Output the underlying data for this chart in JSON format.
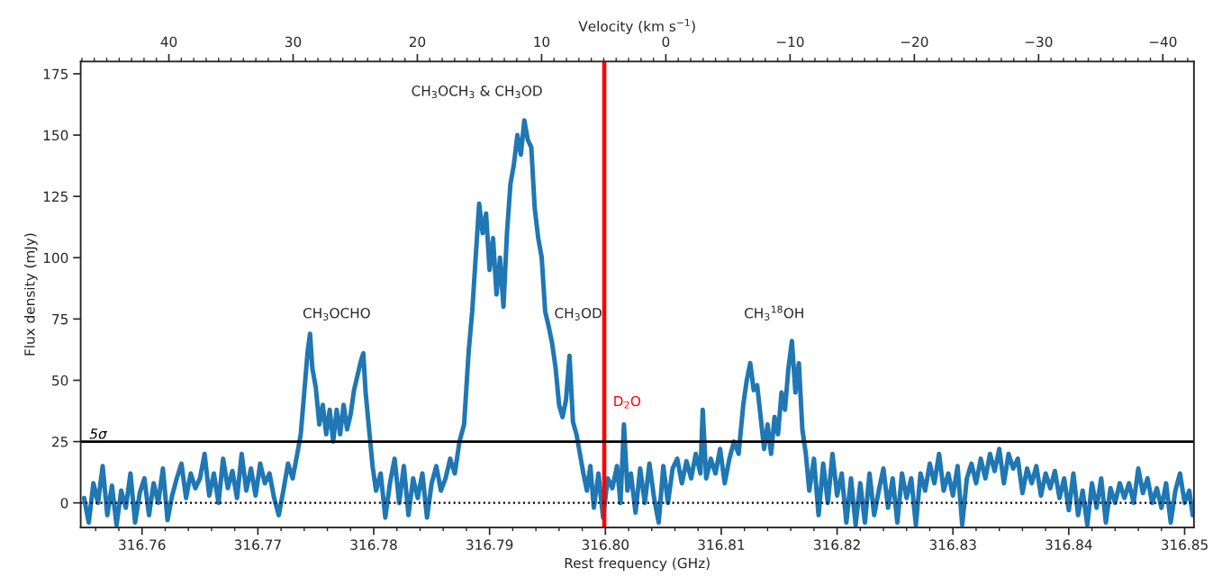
{
  "chart_data": {
    "type": "line",
    "xlabel": "Rest frequency (GHz)",
    "ylabel": "Flux density (mJy)",
    "x2label": "Velocity (km s$^{−1}$)",
    "xlim": [
      316.7547,
      316.8508
    ],
    "ylim": [
      -10,
      180
    ],
    "x2lim": [
      47.1,
      -42.5
    ],
    "xticks": [
      316.76,
      316.77,
      316.78,
      316.79,
      {
        "value": 316.8,
        "label": "316.80"
      },
      316.81,
      316.82,
      316.83,
      316.84,
      316.85,
      {
        "value": 316.756,
        "label": null
      },
      {
        "value": 316.758,
        "label": null
      },
      {
        "value": 316.762,
        "label": null
      },
      {
        "value": 316.764,
        "label": null
      },
      {
        "value": 316.766,
        "label": null
      },
      {
        "value": 316.768,
        "label": null
      },
      {
        "value": 316.772,
        "label": null
      },
      {
        "value": 316.774,
        "label": null
      },
      {
        "value": 316.776,
        "label": null
      },
      {
        "value": 316.778,
        "label": null
      },
      {
        "value": 316.782,
        "label": null
      },
      {
        "value": 316.784,
        "label": null
      },
      {
        "value": 316.786,
        "label": null
      },
      {
        "value": 316.788,
        "label": null
      },
      {
        "value": 316.792,
        "label": null
      },
      {
        "value": 316.794,
        "label": null
      },
      {
        "value": 316.796,
        "label": null
      },
      {
        "value": 316.798,
        "label": null
      },
      {
        "value": 316.802,
        "label": null
      },
      {
        "value": 316.804,
        "label": null
      },
      {
        "value": 316.806,
        "label": null
      },
      {
        "value": 316.808,
        "label": null
      },
      {
        "value": 316.812,
        "label": null
      },
      {
        "value": 316.814,
        "label": null
      },
      {
        "value": 316.816,
        "label": null
      },
      {
        "value": 316.818,
        "label": null
      },
      {
        "value": 316.822,
        "label": null
      },
      {
        "value": 316.824,
        "label": null
      },
      {
        "value": 316.826,
        "label": null
      },
      {
        "value": 316.828,
        "label": null
      },
      {
        "value": 316.832,
        "label": null
      },
      {
        "value": 316.834,
        "label": null
      },
      {
        "value": 316.836,
        "label": null
      },
      {
        "value": 316.838,
        "label": null
      },
      {
        "value": 316.842,
        "label": null
      },
      {
        "value": 316.844,
        "label": null
      },
      {
        "value": 316.846,
        "label": null
      },
      {
        "value": 316.848,
        "label": null
      }
    ],
    "x2ticks": [
      40,
      30,
      20,
      10,
      0,
      {
        "value": -10,
        "label": "−10"
      },
      {
        "value": -20,
        "label": "−20"
      },
      {
        "value": -30,
        "label": "−30"
      },
      {
        "value": -40,
        "label": "−40"
      },
      {
        "value": 47,
        "label": null
      },
      {
        "value": 46,
        "label": null
      },
      {
        "value": 45,
        "label": null
      },
      {
        "value": 44,
        "label": null
      },
      {
        "value": 43,
        "label": null
      },
      {
        "value": 42,
        "label": null
      },
      {
        "value": 41,
        "label": null
      },
      {
        "value": 39,
        "label": null
      },
      {
        "value": 38,
        "label": null
      },
      {
        "value": 37,
        "label": null
      },
      {
        "value": 36,
        "label": null
      },
      {
        "value": 35,
        "label": null
      },
      {
        "value": 34,
        "label": null
      },
      {
        "value": 33,
        "label": null
      },
      {
        "value": 32,
        "label": null
      },
      {
        "value": 31,
        "label": null
      },
      {
        "value": 29,
        "label": null
      },
      {
        "value": 28,
        "label": null
      },
      {
        "value": 27,
        "label": null
      },
      {
        "value": 26,
        "label": null
      },
      {
        "value": 25,
        "label": null
      },
      {
        "value": 24,
        "label": null
      },
      {
        "value": 23,
        "label": null
      },
      {
        "value": 22,
        "label": null
      },
      {
        "value": 21,
        "label": null
      },
      {
        "value": 19,
        "label": null
      },
      {
        "value": 18,
        "label": null
      },
      {
        "value": 17,
        "label": null
      },
      {
        "value": 16,
        "label": null
      },
      {
        "value": 15,
        "label": null
      },
      {
        "value": 14,
        "label": null
      },
      {
        "value": 13,
        "label": null
      },
      {
        "value": 12,
        "label": null
      },
      {
        "value": 11,
        "label": null
      },
      {
        "value": 9,
        "label": null
      },
      {
        "value": 8,
        "label": null
      },
      {
        "value": 7,
        "label": null
      },
      {
        "value": 6,
        "label": null
      },
      {
        "value": 5,
        "label": null
      },
      {
        "value": 4,
        "label": null
      },
      {
        "value": 3,
        "label": null
      },
      {
        "value": 2,
        "label": null
      },
      {
        "value": 1,
        "label": null
      },
      {
        "value": -1,
        "label": null
      },
      {
        "value": -2,
        "label": null
      },
      {
        "value": -3,
        "label": null
      },
      {
        "value": -4,
        "label": null
      },
      {
        "value": -5,
        "label": null
      },
      {
        "value": -6,
        "label": null
      },
      {
        "value": -7,
        "label": null
      },
      {
        "value": -8,
        "label": null
      },
      {
        "value": -9,
        "label": null
      },
      {
        "value": -11,
        "label": null
      },
      {
        "value": -12,
        "label": null
      },
      {
        "value": -13,
        "label": null
      },
      {
        "value": -14,
        "label": null
      },
      {
        "value": -15,
        "label": null
      },
      {
        "value": -16,
        "label": null
      },
      {
        "value": -17,
        "label": null
      },
      {
        "value": -18,
        "label": null
      },
      {
        "value": -19,
        "label": null
      },
      {
        "value": -21,
        "label": null
      },
      {
        "value": -22,
        "label": null
      },
      {
        "value": -23,
        "label": null
      },
      {
        "value": -24,
        "label": null
      },
      {
        "value": -25,
        "label": null
      },
      {
        "value": -26,
        "label": null
      },
      {
        "value": -27,
        "label": null
      },
      {
        "value": -28,
        "label": null
      },
      {
        "value": -29,
        "label": null
      },
      {
        "value": -31,
        "label": null
      },
      {
        "value": -32,
        "label": null
      },
      {
        "value": -33,
        "label": null
      },
      {
        "value": -34,
        "label": null
      },
      {
        "value": -35,
        "label": null
      },
      {
        "value": -36,
        "label": null
      },
      {
        "value": -37,
        "label": null
      },
      {
        "value": -38,
        "label": null
      },
      {
        "value": -39,
        "label": null
      },
      {
        "value": -41,
        "label": null
      },
      {
        "value": -42,
        "label": null
      }
    ],
    "yticks": [
      0,
      25,
      50,
      75,
      100,
      125,
      150,
      175
    ],
    "grid": false,
    "marker": "none",
    "line_style": "solid",
    "series": [
      {
        "color": "#1f77b4",
        "x": [
          316.755,
          316.7554,
          316.7558,
          316.7562,
          316.7566,
          316.757,
          316.7574,
          316.7578,
          316.7582,
          316.7586,
          316.759,
          316.7594,
          316.7598,
          316.7602,
          316.7606,
          316.761,
          316.7614,
          316.7618,
          316.7622,
          316.7626,
          316.763,
          316.7634,
          316.7638,
          316.7642,
          316.7646,
          316.765,
          316.7654,
          316.7658,
          316.7662,
          316.7666,
          316.767,
          316.7674,
          316.7678,
          316.7682,
          316.7686,
          316.769,
          316.7694,
          316.7698,
          316.7702,
          316.7706,
          316.771,
          316.7714,
          316.7718,
          316.7722,
          316.7726,
          316.773,
          316.7734,
          316.7737,
          316.774,
          316.7743,
          316.7745,
          316.7747,
          316.775,
          316.7753,
          316.7756,
          316.7759,
          316.7762,
          316.7765,
          316.7768,
          316.7771,
          316.7774,
          316.7777,
          316.778,
          316.7783,
          316.7786,
          316.7789,
          316.7791,
          316.7793,
          316.7796,
          316.7799,
          316.7802,
          316.7806,
          316.781,
          316.7814,
          316.7818,
          316.7822,
          316.7826,
          316.783,
          316.7834,
          316.7838,
          316.7842,
          316.7846,
          316.785,
          316.7854,
          316.7858,
          316.7862,
          316.7866,
          316.787,
          316.7874,
          316.7878,
          316.7882,
          316.7885,
          316.7888,
          316.7891,
          316.7894,
          316.7897,
          316.79,
          316.7903,
          316.7906,
          316.7909,
          316.7912,
          316.7915,
          316.7918,
          316.7921,
          316.7924,
          316.7927,
          316.793,
          316.7933,
          316.7936,
          316.7939,
          316.7942,
          316.7945,
          316.7948,
          316.7951,
          316.7954,
          316.7957,
          316.796,
          316.7963,
          316.7966,
          316.7969,
          316.7972,
          316.7975,
          316.7978,
          316.7981,
          316.7984,
          316.7987,
          316.799,
          316.7994,
          316.7998,
          316.8002,
          316.8006,
          316.801,
          316.8013,
          316.8016,
          316.8019,
          316.8022,
          316.8026,
          316.803,
          316.8034,
          316.8038,
          316.8042,
          316.8046,
          316.805,
          316.8054,
          316.8058,
          316.8062,
          316.8066,
          316.807,
          316.8074,
          316.8078,
          316.8082,
          316.8084,
          316.8087,
          316.8091,
          316.8095,
          316.8099,
          316.8103,
          316.8107,
          316.8111,
          316.8115,
          316.8119,
          316.8122,
          316.8125,
          316.8128,
          316.8131,
          316.8134,
          316.8137,
          316.814,
          316.8143,
          316.8146,
          316.8149,
          316.8152,
          316.8155,
          316.8158,
          316.8161,
          316.8164,
          316.8167,
          316.817,
          316.8173,
          316.8176,
          316.818,
          316.8184,
          316.8188,
          316.8192,
          316.8196,
          316.82,
          316.8204,
          316.8208,
          316.8212,
          316.8216,
          316.822,
          316.8224,
          316.8228,
          316.8232,
          316.8236,
          316.824,
          316.8244,
          316.8248,
          316.8252,
          316.8256,
          316.826,
          316.8264,
          316.8268,
          316.8272,
          316.8276,
          316.828,
          316.8284,
          316.8288,
          316.8292,
          316.8296,
          316.83,
          316.8304,
          316.8308,
          316.8312,
          316.8316,
          316.832,
          316.8324,
          316.8328,
          316.8332,
          316.8336,
          316.834,
          316.8344,
          316.8348,
          316.8352,
          316.8356,
          316.836,
          316.8364,
          316.8368,
          316.8372,
          316.8376,
          316.838,
          316.8384,
          316.8388,
          316.8392,
          316.8396,
          316.84,
          316.8404,
          316.8408,
          316.8412,
          316.8416,
          316.842,
          316.8424,
          316.8428,
          316.8432,
          316.8436,
          316.844,
          316.8444,
          316.8448,
          316.8452,
          316.8456,
          316.846,
          316.8464,
          316.8468,
          316.8472,
          316.8476,
          316.848,
          316.8484,
          316.8488,
          316.8492,
          316.8496,
          316.85,
          316.8504,
          316.8507
        ],
        "values": [
          2,
          -8,
          8,
          0,
          15,
          -5,
          7,
          -9,
          5,
          -2,
          12,
          -8,
          4,
          10,
          -5,
          8,
          0,
          14,
          -7,
          3,
          10,
          16,
          2,
          12,
          6,
          10,
          20,
          3,
          12,
          0,
          18,
          6,
          13,
          2,
          20,
          5,
          14,
          3,
          16,
          8,
          12,
          2,
          -5,
          5,
          16,
          10,
          20,
          28,
          45,
          62,
          69,
          55,
          47,
          32,
          40,
          28,
          38,
          25,
          38,
          28,
          40,
          30,
          36,
          46,
          52,
          58,
          61,
          45,
          30,
          15,
          5,
          12,
          -6,
          8,
          18,
          0,
          15,
          -5,
          10,
          2,
          12,
          -6,
          8,
          15,
          5,
          10,
          18,
          12,
          25,
          32,
          62,
          78,
          100,
          122,
          110,
          118,
          95,
          108,
          85,
          100,
          80,
          110,
          130,
          138,
          150,
          142,
          156,
          148,
          145,
          120,
          108,
          100,
          78,
          72,
          65,
          55,
          40,
          35,
          42,
          60,
          33,
          28,
          20,
          12,
          5,
          15,
          -2,
          12,
          -6,
          10,
          6,
          15,
          0,
          32,
          5,
          12,
          -4,
          14,
          0,
          16,
          2,
          -8,
          15,
          0,
          14,
          18,
          8,
          17,
          10,
          20,
          12,
          38,
          10,
          18,
          12,
          22,
          8,
          18,
          25,
          20,
          40,
          50,
          57,
          46,
          48,
          35,
          22,
          32,
          20,
          35,
          28,
          45,
          38,
          55,
          66,
          45,
          57,
          30,
          20,
          5,
          18,
          -5,
          16,
          0,
          20,
          3,
          12,
          -8,
          10,
          -9,
          8,
          -8,
          12,
          -5,
          5,
          14,
          -2,
          10,
          -8,
          12,
          2,
          10,
          -9,
          12,
          5,
          16,
          8,
          20,
          5,
          12,
          3,
          15,
          -9,
          10,
          16,
          8,
          18,
          10,
          20,
          13,
          22,
          8,
          20,
          14,
          18,
          4,
          14,
          8,
          15,
          3,
          12,
          6,
          13,
          2,
          10,
          -3,
          12,
          -5,
          5,
          -9,
          8,
          -2,
          10,
          -8,
          6,
          0,
          8,
          2,
          8,
          0,
          14,
          4,
          10,
          0,
          6,
          -2,
          8,
          -8,
          5,
          12,
          0,
          5,
          -5
        ]
      }
    ],
    "ref_lines": [
      {
        "axis": "x",
        "value": 316.7999,
        "label": "D$_{2}$O",
        "color": "#ff0000",
        "line_style": "solid"
      },
      {
        "axis": "y",
        "value": 25,
        "label": "5σ",
        "color": "#000000",
        "line_style": "solid"
      },
      {
        "axis": "y",
        "value": 0,
        "color": "#000000",
        "line_style": "dotted"
      }
    ],
    "annotations": [
      "CH$_{3}$OCHO",
      "CH$_{3}$OCH$_{3}$ & CH$_{3}$OD",
      "CH$_{3}$OD",
      "CH$_{3}$$^{18}$OH"
    ]
  }
}
